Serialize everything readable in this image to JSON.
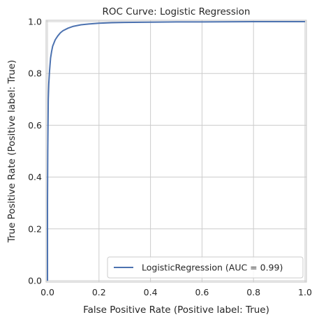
{
  "chart_data": {
    "type": "line",
    "title": "ROC Curve: Logistic Regression",
    "xlabel": "False Positive Rate (Positive label: True)",
    "ylabel": "True Positive Rate (Positive label: True)",
    "xlim": [
      0.0,
      1.0
    ],
    "ylim": [
      0.0,
      1.0
    ],
    "x_ticks": [
      0.0,
      0.2,
      0.4,
      0.6,
      0.8,
      1.0
    ],
    "y_ticks": [
      0.0,
      0.2,
      0.4,
      0.6,
      0.8,
      1.0
    ],
    "x_tick_labels": [
      "0.0",
      "0.2",
      "0.4",
      "0.6",
      "0.8",
      "1.0"
    ],
    "y_tick_labels": [
      "0.0",
      "0.2",
      "0.4",
      "0.6",
      "0.8",
      "1.0"
    ],
    "grid": true,
    "legend_position": "bottom-right",
    "series": [
      {
        "name": "LogisticRegression (AUC = 0.99)",
        "color": "#4c72b0",
        "x": [
          0.0,
          0.0,
          0.001,
          0.002,
          0.003,
          0.005,
          0.008,
          0.012,
          0.016,
          0.02,
          0.03,
          0.04,
          0.05,
          0.06,
          0.08,
          0.1,
          0.13,
          0.16,
          0.2,
          0.25,
          0.3,
          0.4,
          0.5,
          0.6,
          0.8,
          1.0
        ],
        "y": [
          0.0,
          0.3,
          0.5,
          0.6,
          0.7,
          0.76,
          0.81,
          0.86,
          0.885,
          0.905,
          0.93,
          0.945,
          0.957,
          0.965,
          0.975,
          0.982,
          0.988,
          0.991,
          0.994,
          0.996,
          0.997,
          0.998,
          0.999,
          0.999,
          1.0,
          1.0
        ]
      }
    ]
  }
}
